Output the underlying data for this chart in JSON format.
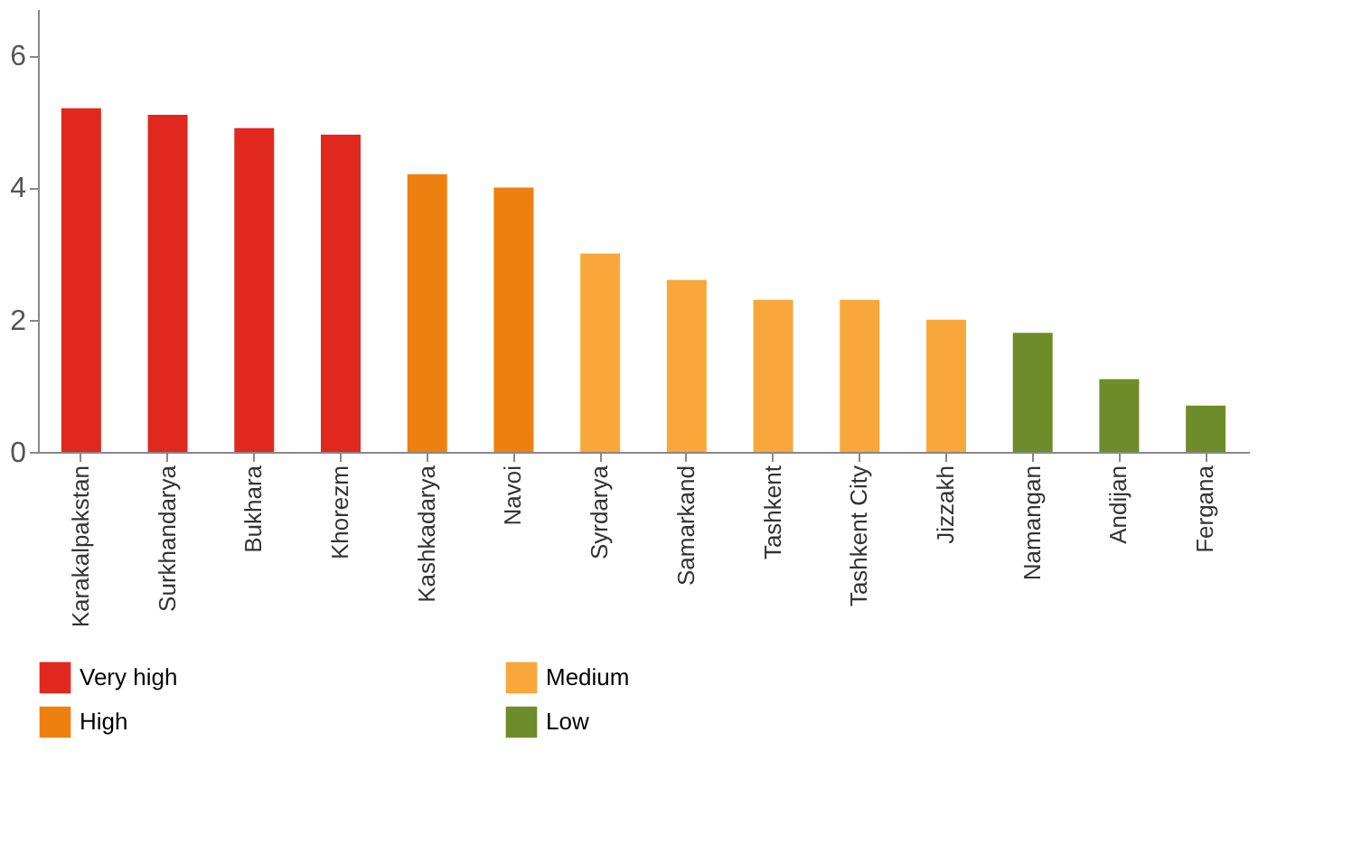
{
  "chart_data": {
    "type": "bar",
    "categories": [
      "Karakalpakstan",
      "Surkhandarya",
      "Bukhara",
      "Khorezm",
      "Kashkadarya",
      "Navoi",
      "Syrdarya",
      "Samarkand",
      "Tashkent",
      "Tashkent City",
      "Jizzakh",
      "Namangan",
      "Andijan",
      "Fergana"
    ],
    "series": [
      {
        "name": "Very high",
        "color": "#e0281e",
        "values": [
          5.2,
          5.1,
          4.9,
          4.8,
          null,
          null,
          null,
          null,
          null,
          null,
          null,
          null,
          null,
          null
        ]
      },
      {
        "name": "High",
        "color": "#ee8010",
        "values": [
          null,
          null,
          null,
          null,
          4.2,
          4.0,
          null,
          null,
          null,
          null,
          null,
          null,
          null,
          null
        ]
      },
      {
        "name": "Medium",
        "color": "#f8a83a",
        "values": [
          null,
          null,
          null,
          null,
          null,
          null,
          3.0,
          2.6,
          2.3,
          2.3,
          2.0,
          null,
          null,
          null
        ]
      },
      {
        "name": "Low",
        "color": "#6e8c2a",
        "values": [
          null,
          null,
          null,
          null,
          null,
          null,
          null,
          null,
          null,
          null,
          null,
          1.8,
          1.1,
          0.7
        ]
      }
    ],
    "ylim": [
      0,
      6.7
    ],
    "yticks": [
      0,
      2,
      4,
      6
    ],
    "grid": false,
    "legend": "bottom"
  }
}
